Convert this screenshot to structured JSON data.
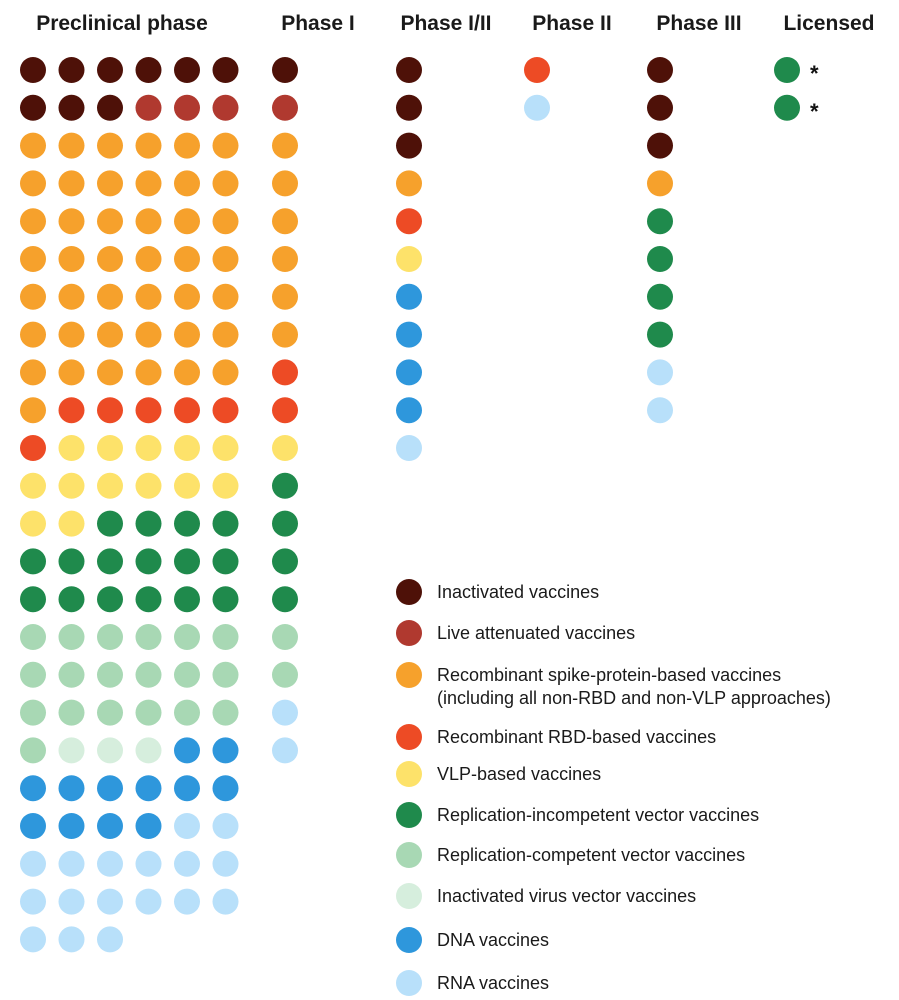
{
  "chart_data": {
    "type": "dot-matrix",
    "phases": [
      {
        "name": "Preclinical phase",
        "columns": 6,
        "dots": [
          "inactivated",
          "inactivated",
          "inactivated",
          "inactivated",
          "inactivated",
          "inactivated",
          "inactivated",
          "inactivated",
          "inactivated",
          "live_attenuated",
          "live_attenuated",
          "live_attenuated",
          "spike",
          "spike",
          "spike",
          "spike",
          "spike",
          "spike",
          "spike",
          "spike",
          "spike",
          "spike",
          "spike",
          "spike",
          "spike",
          "spike",
          "spike",
          "spike",
          "spike",
          "spike",
          "spike",
          "spike",
          "spike",
          "spike",
          "spike",
          "spike",
          "spike",
          "spike",
          "spike",
          "spike",
          "spike",
          "spike",
          "spike",
          "spike",
          "spike",
          "spike",
          "spike",
          "spike",
          "spike",
          "spike",
          "spike",
          "spike",
          "spike",
          "spike",
          "spike",
          "rbd",
          "rbd",
          "rbd",
          "rbd",
          "rbd",
          "rbd",
          "vlp",
          "vlp",
          "vlp",
          "vlp",
          "vlp",
          "vlp",
          "vlp",
          "vlp",
          "vlp",
          "vlp",
          "vlp",
          "vlp",
          "vlp",
          "repl_incomp",
          "repl_incomp",
          "repl_incomp",
          "repl_incomp",
          "repl_incomp",
          "repl_incomp",
          "repl_incomp",
          "repl_incomp",
          "repl_incomp",
          "repl_incomp",
          "repl_incomp",
          "repl_incomp",
          "repl_incomp",
          "repl_incomp",
          "repl_incomp",
          "repl_incomp",
          "repl_comp",
          "repl_comp",
          "repl_comp",
          "repl_comp",
          "repl_comp",
          "repl_comp",
          "repl_comp",
          "repl_comp",
          "repl_comp",
          "repl_comp",
          "repl_comp",
          "repl_comp",
          "repl_comp",
          "repl_comp",
          "repl_comp",
          "repl_comp",
          "repl_comp",
          "repl_comp",
          "repl_comp",
          "inact_vector",
          "inact_vector",
          "inact_vector",
          "dna",
          "dna",
          "dna",
          "dna",
          "dna",
          "dna",
          "dna",
          "dna",
          "dna",
          "dna",
          "dna",
          "dna",
          "rna",
          "rna",
          "rna",
          "rna",
          "rna",
          "rna",
          "rna",
          "rna",
          "rna",
          "rna",
          "rna",
          "rna",
          "rna",
          "rna",
          "rna",
          "rna",
          "rna"
        ]
      },
      {
        "name": "Phase I",
        "columns": 1,
        "dots": [
          "inactivated",
          "live_attenuated",
          "spike",
          "spike",
          "spike",
          "spike",
          "spike",
          "spike",
          "rbd",
          "rbd",
          "vlp",
          "repl_incomp",
          "repl_incomp",
          "repl_incomp",
          "repl_incomp",
          "repl_comp",
          "repl_comp",
          "rna",
          "rna"
        ]
      },
      {
        "name": "Phase I/II",
        "columns": 1,
        "dots": [
          "inactivated",
          "inactivated",
          "inactivated",
          "spike",
          "rbd",
          "vlp",
          "dna",
          "dna",
          "dna",
          "dna",
          "rna"
        ]
      },
      {
        "name": "Phase II",
        "columns": 1,
        "dots": [
          "rbd",
          "rna"
        ]
      },
      {
        "name": "Phase III",
        "columns": 1,
        "dots": [
          "inactivated",
          "inactivated",
          "inactivated",
          "spike",
          "repl_incomp",
          "repl_incomp",
          "repl_incomp",
          "repl_incomp",
          "rna",
          "rna"
        ]
      },
      {
        "name": "Licensed",
        "columns": 1,
        "dots": [
          "repl_incomp",
          "repl_incomp"
        ],
        "asterisk": "*"
      }
    ],
    "categories": [
      {
        "key": "inactivated",
        "label": "Inactivated vaccines",
        "color": "#4e1108"
      },
      {
        "key": "live_attenuated",
        "label": "Live attenuated vaccines",
        "color": "#b0392f"
      },
      {
        "key": "spike",
        "label": "Recombinant spike-protein-based vaccines",
        "label_line2": "(including all non-RBD and non-VLP approaches)",
        "color": "#f6a12c"
      },
      {
        "key": "rbd",
        "label": "Recombinant RBD-based vaccines",
        "color": "#ed4b25"
      },
      {
        "key": "vlp",
        "label": "VLP-based vaccines",
        "color": "#fde26a"
      },
      {
        "key": "repl_incomp",
        "label": "Replication-incompetent vector vaccines",
        "color": "#1f8a4c"
      },
      {
        "key": "repl_comp",
        "label": "Replication-competent vector vaccines",
        "color": "#a8d8b4"
      },
      {
        "key": "inact_vector",
        "label": "Inactivated virus vector vaccines",
        "color": "#d6eedd"
      },
      {
        "key": "dna",
        "label": "DNA vaccines",
        "color": "#2e97dc"
      },
      {
        "key": "rna",
        "label": "RNA vaccines",
        "color": "#b8e0fa"
      }
    ]
  }
}
